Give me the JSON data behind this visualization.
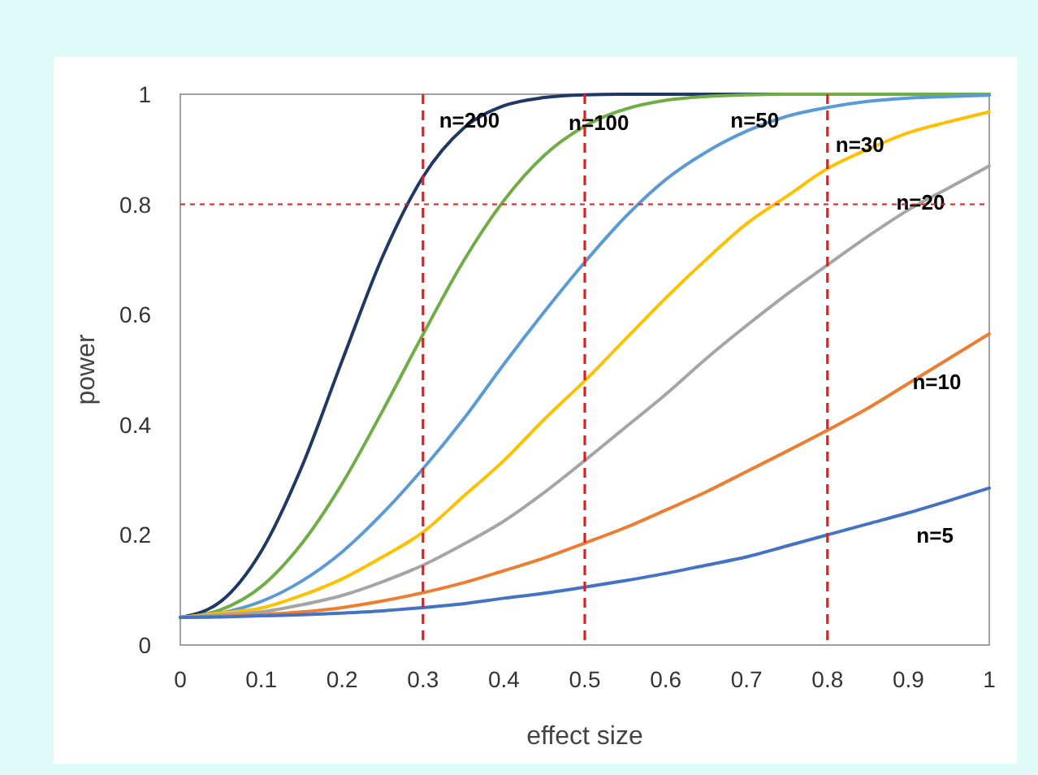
{
  "chart_data": {
    "type": "line",
    "xlabel": "effect size",
    "ylabel": "power",
    "x": [
      0,
      0.05,
      0.1,
      0.15,
      0.2,
      0.25,
      0.3,
      0.35,
      0.4,
      0.45,
      0.5,
      0.55,
      0.6,
      0.65,
      0.7,
      0.75,
      0.8,
      0.85,
      0.9,
      0.95,
      1
    ],
    "xlim": [
      0,
      1
    ],
    "xticks": [
      0,
      0.1,
      0.2,
      0.3,
      0.4,
      0.5,
      0.6,
      0.7,
      0.8,
      0.9,
      1
    ],
    "ylim": [
      0,
      1
    ],
    "yticks": [
      0,
      0.2,
      0.4,
      0.6,
      0.8,
      1
    ],
    "grid": false,
    "marker": "none",
    "line_style": "solid",
    "series": [
      {
        "name": "n=200",
        "color": "#203864",
        "values": [
          0.05,
          0.079,
          0.17,
          0.323,
          0.516,
          0.705,
          0.85,
          0.938,
          0.979,
          0.994,
          0.999,
          1,
          1,
          1,
          1,
          1,
          1,
          1,
          1,
          1,
          1
        ]
      },
      {
        "name": "n=100",
        "color": "#70ad47",
        "values": [
          0.05,
          0.064,
          0.106,
          0.184,
          0.293,
          0.425,
          0.564,
          0.697,
          0.807,
          0.889,
          0.942,
          0.973,
          0.989,
          0.996,
          0.999,
          1,
          1,
          1,
          1,
          1,
          1
        ]
      },
      {
        "name": "n=50",
        "color": "#5b9bd5",
        "values": [
          0.05,
          0.058,
          0.079,
          0.116,
          0.169,
          0.239,
          0.32,
          0.41,
          0.51,
          0.605,
          0.695,
          0.777,
          0.845,
          0.895,
          0.933,
          0.96,
          0.976,
          0.987,
          0.993,
          0.996,
          0.998
        ]
      },
      {
        "name": "n=30",
        "color": "#ffc000",
        "values": [
          0.05,
          0.058,
          0.067,
          0.09,
          0.12,
          0.16,
          0.205,
          0.27,
          0.335,
          0.41,
          0.48,
          0.555,
          0.63,
          0.7,
          0.765,
          0.815,
          0.865,
          0.9,
          0.93,
          0.95,
          0.968
        ]
      },
      {
        "name": "n=20",
        "color": "#a5a5a5",
        "values": [
          0.05,
          0.055,
          0.06,
          0.073,
          0.09,
          0.115,
          0.145,
          0.183,
          0.225,
          0.277,
          0.335,
          0.395,
          0.455,
          0.52,
          0.58,
          0.637,
          0.69,
          0.742,
          0.79,
          0.83,
          0.87
        ]
      },
      {
        "name": "n=10",
        "color": "#ed7d31",
        "values": [
          0.05,
          0.052,
          0.055,
          0.06,
          0.068,
          0.08,
          0.095,
          0.113,
          0.135,
          0.158,
          0.185,
          0.213,
          0.245,
          0.278,
          0.315,
          0.352,
          0.39,
          0.43,
          0.475,
          0.52,
          0.565
        ]
      },
      {
        "name": "n=5",
        "color": "#4472c4",
        "values": [
          0.05,
          0.051,
          0.053,
          0.055,
          0.058,
          0.062,
          0.068,
          0.075,
          0.085,
          0.094,
          0.105,
          0.117,
          0.13,
          0.145,
          0.16,
          0.18,
          0.2,
          0.22,
          0.24,
          0.262,
          0.285
        ]
      }
    ],
    "ref_lines": [
      {
        "axis": "x",
        "value": 0.3,
        "color": "#e02020",
        "line_style": "dashed"
      },
      {
        "axis": "x",
        "value": 0.5,
        "color": "#e02020",
        "line_style": "dashed"
      },
      {
        "axis": "x",
        "value": 0.8,
        "color": "#e02020",
        "line_style": "dashed"
      },
      {
        "axis": "y",
        "value": 0.8,
        "color": "#e02020",
        "line_style": "dotted"
      }
    ]
  }
}
